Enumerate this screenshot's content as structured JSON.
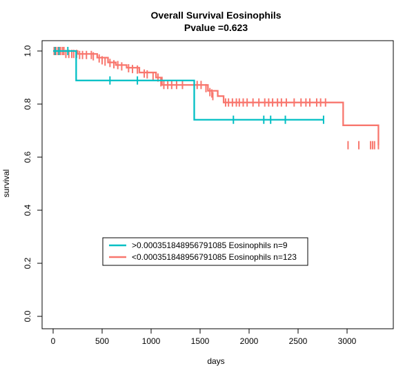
{
  "chart_data": {
    "type": "line",
    "title": "Overall Survival Eosinophils",
    "subtitle": "Pvalue =0.623",
    "xlabel": "days",
    "ylabel": "survival",
    "xlim": [
      0,
      3350
    ],
    "ylim": [
      0,
      1
    ],
    "x_ticks": [
      "0",
      "500",
      "1000",
      "1500",
      "2000",
      "2500",
      "3000"
    ],
    "y_ticks": [
      "0.0",
      "0.2",
      "0.4",
      "0.6",
      "0.8",
      "1.0"
    ],
    "grid": false,
    "legend_position": "bottom-left",
    "series": [
      {
        "name": ">0.000351848956791085 Eosinophils n=9",
        "color": "#00BFC4",
        "steps": [
          [
            0,
            1.0
          ],
          [
            235,
            0.889
          ],
          [
            1440,
            0.741
          ],
          [
            2760,
            0.741
          ]
        ],
        "censors": [
          [
            20,
            1.0
          ],
          [
            60,
            1.0
          ],
          [
            150,
            1.0
          ],
          [
            580,
            0.889
          ],
          [
            860,
            0.889
          ],
          [
            1840,
            0.741
          ],
          [
            2150,
            0.741
          ],
          [
            2220,
            0.741
          ],
          [
            2370,
            0.741
          ],
          [
            2760,
            0.741
          ]
        ]
      },
      {
        "name": "<0.000351848956791085 Eosinophils n=123",
        "color": "#F8766D",
        "steps": [
          [
            0,
            1.0
          ],
          [
            120,
            1.0
          ],
          [
            250,
            0.989
          ],
          [
            450,
            0.975
          ],
          [
            560,
            0.957
          ],
          [
            640,
            0.947
          ],
          [
            750,
            0.937
          ],
          [
            880,
            0.919
          ],
          [
            1050,
            0.9
          ],
          [
            1110,
            0.872
          ],
          [
            1430,
            0.872
          ],
          [
            1580,
            0.85
          ],
          [
            1680,
            0.83
          ],
          [
            1740,
            0.806
          ],
          [
            2850,
            0.806
          ],
          [
            2960,
            0.72
          ],
          [
            3320,
            0.645
          ]
        ],
        "censors": [
          [
            10,
            1.0
          ],
          [
            30,
            1.0
          ],
          [
            50,
            1.0
          ],
          [
            75,
            1.0
          ],
          [
            95,
            1.0
          ],
          [
            110,
            1.0
          ],
          [
            130,
            0.989
          ],
          [
            160,
            0.989
          ],
          [
            190,
            0.989
          ],
          [
            210,
            0.989
          ],
          [
            240,
            0.989
          ],
          [
            270,
            0.985
          ],
          [
            300,
            0.985
          ],
          [
            340,
            0.985
          ],
          [
            390,
            0.985
          ],
          [
            410,
            0.98
          ],
          [
            470,
            0.972
          ],
          [
            500,
            0.965
          ],
          [
            530,
            0.96
          ],
          [
            580,
            0.955
          ],
          [
            620,
            0.95
          ],
          [
            660,
            0.947
          ],
          [
            700,
            0.942
          ],
          [
            770,
            0.935
          ],
          [
            810,
            0.932
          ],
          [
            860,
            0.93
          ],
          [
            930,
            0.915
          ],
          [
            960,
            0.912
          ],
          [
            1020,
            0.905
          ],
          [
            1070,
            0.9
          ],
          [
            1100,
            0.882
          ],
          [
            1130,
            0.872
          ],
          [
            1170,
            0.872
          ],
          [
            1210,
            0.872
          ],
          [
            1260,
            0.872
          ],
          [
            1320,
            0.872
          ],
          [
            1470,
            0.872
          ],
          [
            1510,
            0.872
          ],
          [
            1560,
            0.86
          ],
          [
            1600,
            0.845
          ],
          [
            1620,
            0.84
          ],
          [
            1630,
            0.83
          ],
          [
            1760,
            0.806
          ],
          [
            1790,
            0.806
          ],
          [
            1830,
            0.806
          ],
          [
            1870,
            0.806
          ],
          [
            1900,
            0.806
          ],
          [
            1940,
            0.806
          ],
          [
            1980,
            0.806
          ],
          [
            2040,
            0.806
          ],
          [
            2100,
            0.806
          ],
          [
            2160,
            0.806
          ],
          [
            2200,
            0.806
          ],
          [
            2240,
            0.806
          ],
          [
            2290,
            0.806
          ],
          [
            2330,
            0.806
          ],
          [
            2380,
            0.806
          ],
          [
            2460,
            0.806
          ],
          [
            2530,
            0.806
          ],
          [
            2580,
            0.806
          ],
          [
            2620,
            0.806
          ],
          [
            2690,
            0.806
          ],
          [
            2730,
            0.806
          ],
          [
            2780,
            0.806
          ],
          [
            3010,
            0.645
          ],
          [
            3120,
            0.645
          ],
          [
            3240,
            0.645
          ],
          [
            3260,
            0.645
          ],
          [
            3280,
            0.645
          ],
          [
            3320,
            0.645
          ]
        ]
      }
    ]
  }
}
